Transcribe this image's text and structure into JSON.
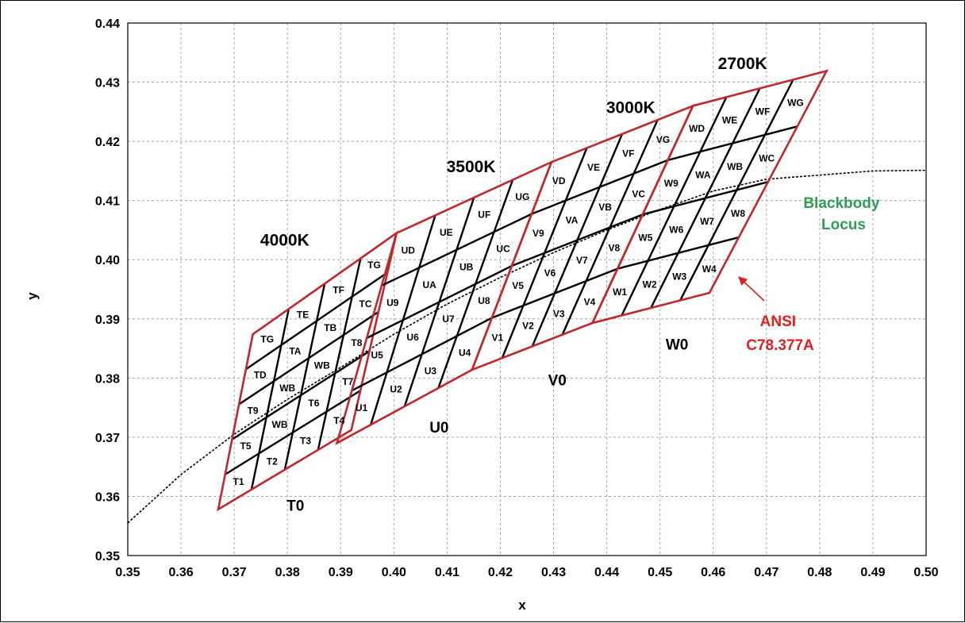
{
  "chart_data": {
    "type": "line",
    "xlabel": "x",
    "ylabel": "y",
    "xlim": [
      0.35,
      0.5
    ],
    "ylim": [
      0.35,
      0.44
    ],
    "x_ticks": [
      "0.35",
      "0.36",
      "0.37",
      "0.38",
      "0.39",
      "0.40",
      "0.41",
      "0.42",
      "0.43",
      "0.44",
      "0.45",
      "0.46",
      "0.47",
      "0.48",
      "0.49",
      "0.50"
    ],
    "y_ticks": [
      "0.35",
      "0.36",
      "0.37",
      "0.38",
      "0.39",
      "0.40",
      "0.41",
      "0.42",
      "0.43",
      "0.44"
    ],
    "grid": true,
    "colors": {
      "bin_lines": "#000000",
      "quadrangle_outline": "#c0282d",
      "locus_label": "#2e9e55",
      "ansi_label": "#e02020",
      "grid": "#a8a8a8"
    },
    "cct_labels": [
      {
        "text": "4000K",
        "x": 0.3795,
        "y": 0.4024
      },
      {
        "text": "3500K",
        "x": 0.4145,
        "y": 0.4148
      },
      {
        "text": "3000K",
        "x": 0.4445,
        "y": 0.4248
      },
      {
        "text": "2700K",
        "x": 0.4655,
        "y": 0.4322
      }
    ],
    "region_labels": [
      {
        "text": "T0",
        "x": 0.3815,
        "y": 0.3576
      },
      {
        "text": "U0",
        "x": 0.4085,
        "y": 0.3708
      },
      {
        "text": "V0",
        "x": 0.4307,
        "y": 0.3788
      },
      {
        "text": "W0",
        "x": 0.4532,
        "y": 0.3848
      }
    ],
    "series": [
      {
        "name": "Blackbody Locus",
        "style": "dotted",
        "x": [
          0.35,
          0.36,
          0.37,
          0.38,
          0.39,
          0.4,
          0.41,
          0.42,
          0.43,
          0.44,
          0.45,
          0.46,
          0.47,
          0.48,
          0.49,
          0.5
        ],
        "y": [
          0.3555,
          0.3637,
          0.3705,
          0.3764,
          0.3818,
          0.3874,
          0.3925,
          0.397,
          0.4012,
          0.405,
          0.4085,
          0.4116,
          0.4136,
          0.4143,
          0.415,
          0.4151
        ]
      }
    ],
    "annotations": [
      {
        "text": "Blackbody Locus",
        "x": 0.4845,
        "y": 0.4086
      },
      {
        "text": "ANSI C78.377A",
        "x": 0.4682,
        "y": 0.3884
      }
    ],
    "quadrangles": [
      {
        "name": "4000K",
        "bottom": [
          [
            0.367,
            0.3578
          ],
          [
            0.392,
            0.3712
          ]
        ],
        "top": [
          [
            0.3735,
            0.3874
          ],
          [
            0.4005,
            0.4045
          ]
        ],
        "bins": [
          [
            "T1",
            "T2",
            "T3",
            "T4"
          ],
          [
            "T5",
            "WB",
            "T6",
            "T7"
          ],
          [
            "T9",
            "WB",
            "WB",
            "T8"
          ],
          [
            "TD",
            "TA",
            "TB",
            "TC"
          ],
          [
            "TG",
            "TE",
            "TF",
            "TG"
          ]
        ]
      },
      {
        "name": "3500K",
        "bottom": [
          [
            0.3893,
            0.369
          ],
          [
            0.4147,
            0.3814
          ]
        ],
        "top": [
          [
            0.4005,
            0.4045
          ],
          [
            0.4296,
            0.4165
          ]
        ],
        "bins": [
          [
            "U1",
            "U2",
            "U3",
            "U4"
          ],
          [
            "U5",
            "U6",
            "U7",
            "U8"
          ],
          [
            "U9",
            "UA",
            "UB",
            "UC"
          ],
          [
            "UD",
            "UE",
            "UF",
            "UG"
          ]
        ]
      },
      {
        "name": "3000K",
        "bottom": [
          [
            0.4147,
            0.3814
          ],
          [
            0.4373,
            0.3893
          ]
        ],
        "top": [
          [
            0.4296,
            0.4165
          ],
          [
            0.4562,
            0.426
          ]
        ],
        "bins": [
          [
            "V1",
            "V2",
            "V3",
            "V4"
          ],
          [
            "V5",
            "V6",
            "V7",
            "V8"
          ],
          [
            "V9",
            "VA",
            "VB",
            "VC"
          ],
          [
            "VD",
            "VE",
            "VF",
            "VG"
          ]
        ]
      },
      {
        "name": "2700K",
        "bottom": [
          [
            0.4373,
            0.3893
          ],
          [
            0.4593,
            0.3944
          ]
        ],
        "top": [
          [
            0.4562,
            0.426
          ],
          [
            0.4813,
            0.4319
          ]
        ],
        "bins": [
          [
            "W1",
            "W2",
            "W3",
            "W4"
          ],
          [
            "W5",
            "W6",
            "W7",
            "W8"
          ],
          [
            "W9",
            "WA",
            "WB",
            "WC"
          ],
          [
            "WD",
            "WE",
            "WF",
            "WG"
          ]
        ]
      }
    ]
  }
}
